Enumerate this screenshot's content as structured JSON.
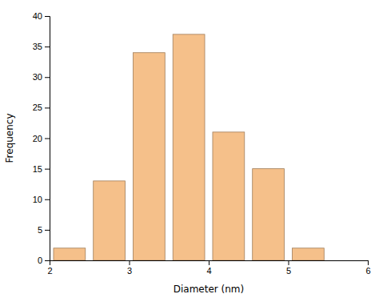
{
  "chart_data": {
    "type": "bar",
    "x": [
      2.25,
      2.75,
      3.25,
      3.75,
      4.25,
      4.75,
      5.25
    ],
    "values": [
      2,
      13,
      34,
      37,
      21,
      15,
      2
    ],
    "color": "#F5C08A",
    "xlabel": "Diameter (nm)",
    "ylabel": "Frequency",
    "xlim": [
      2,
      6
    ],
    "ylim": [
      0,
      40
    ],
    "xticks": [
      2,
      3,
      4,
      5,
      6
    ],
    "yticks": [
      0,
      5,
      10,
      15,
      20,
      25,
      30,
      35,
      40
    ],
    "grid": false
  }
}
